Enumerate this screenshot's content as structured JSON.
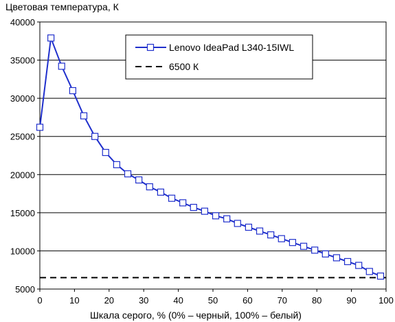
{
  "chart_data": {
    "type": "line",
    "ylabel": "Цветовая температура, К",
    "xlabel": "Шкала серого, % (0% – черный, 100% – белый)",
    "xlim": [
      0,
      100
    ],
    "ylim": [
      5000,
      40000
    ],
    "x_ticks": [
      0,
      10,
      20,
      30,
      40,
      50,
      60,
      70,
      80,
      90,
      100
    ],
    "y_ticks": [
      5000,
      10000,
      15000,
      20000,
      25000,
      30000,
      35000,
      40000
    ],
    "grid": "horizontal",
    "legend_position": "top-right",
    "colors": {
      "series": "#1f2fcc",
      "reference": "#000000",
      "grid": "#000000"
    },
    "series": [
      {
        "name": "Lenovo IdeaPad L340-15IWL",
        "style": "solid-square-markers",
        "x": [
          0,
          3.2,
          6.3,
          9.5,
          12.7,
          15.9,
          19.0,
          22.2,
          25.4,
          28.6,
          31.7,
          34.9,
          38.1,
          41.3,
          44.4,
          47.6,
          50.8,
          54.0,
          57.1,
          60.3,
          63.5,
          66.7,
          69.8,
          73.0,
          76.2,
          79.4,
          82.5,
          85.7,
          88.9,
          92.1,
          95.2,
          98.4
        ],
        "y": [
          26200,
          37900,
          34200,
          31000,
          27700,
          25000,
          22900,
          21300,
          20100,
          19300,
          18400,
          17700,
          16900,
          16300,
          15700,
          15200,
          14600,
          14200,
          13600,
          13100,
          12600,
          12100,
          11600,
          11100,
          10600,
          10100,
          9600,
          9100,
          8600,
          8100,
          7300,
          6700
        ]
      },
      {
        "name": "6500 К",
        "style": "dashed",
        "x": [
          0,
          100
        ],
        "y": [
          6500,
          6500
        ]
      }
    ]
  }
}
